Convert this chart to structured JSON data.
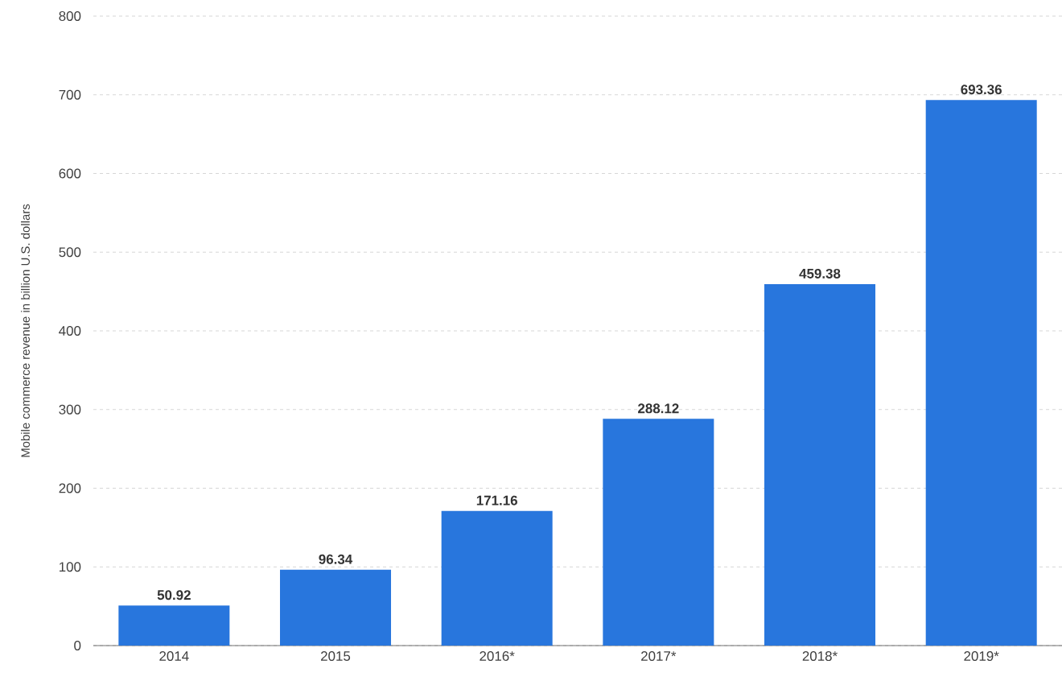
{
  "chart_data": {
    "type": "bar",
    "ylabel": "Mobile commerce revenue in billion U.S. dollars",
    "categories": [
      "2014",
      "2015",
      "2016*",
      "2017*",
      "2018*",
      "2019*"
    ],
    "values": [
      50.92,
      96.34,
      171.16,
      288.12,
      459.38,
      693.36
    ],
    "color": "#2876dd",
    "ylim": [
      0,
      800
    ],
    "yticks": [
      0,
      100,
      200,
      300,
      400,
      500,
      600,
      700,
      800
    ],
    "grid": "y",
    "data_labels": true
  }
}
